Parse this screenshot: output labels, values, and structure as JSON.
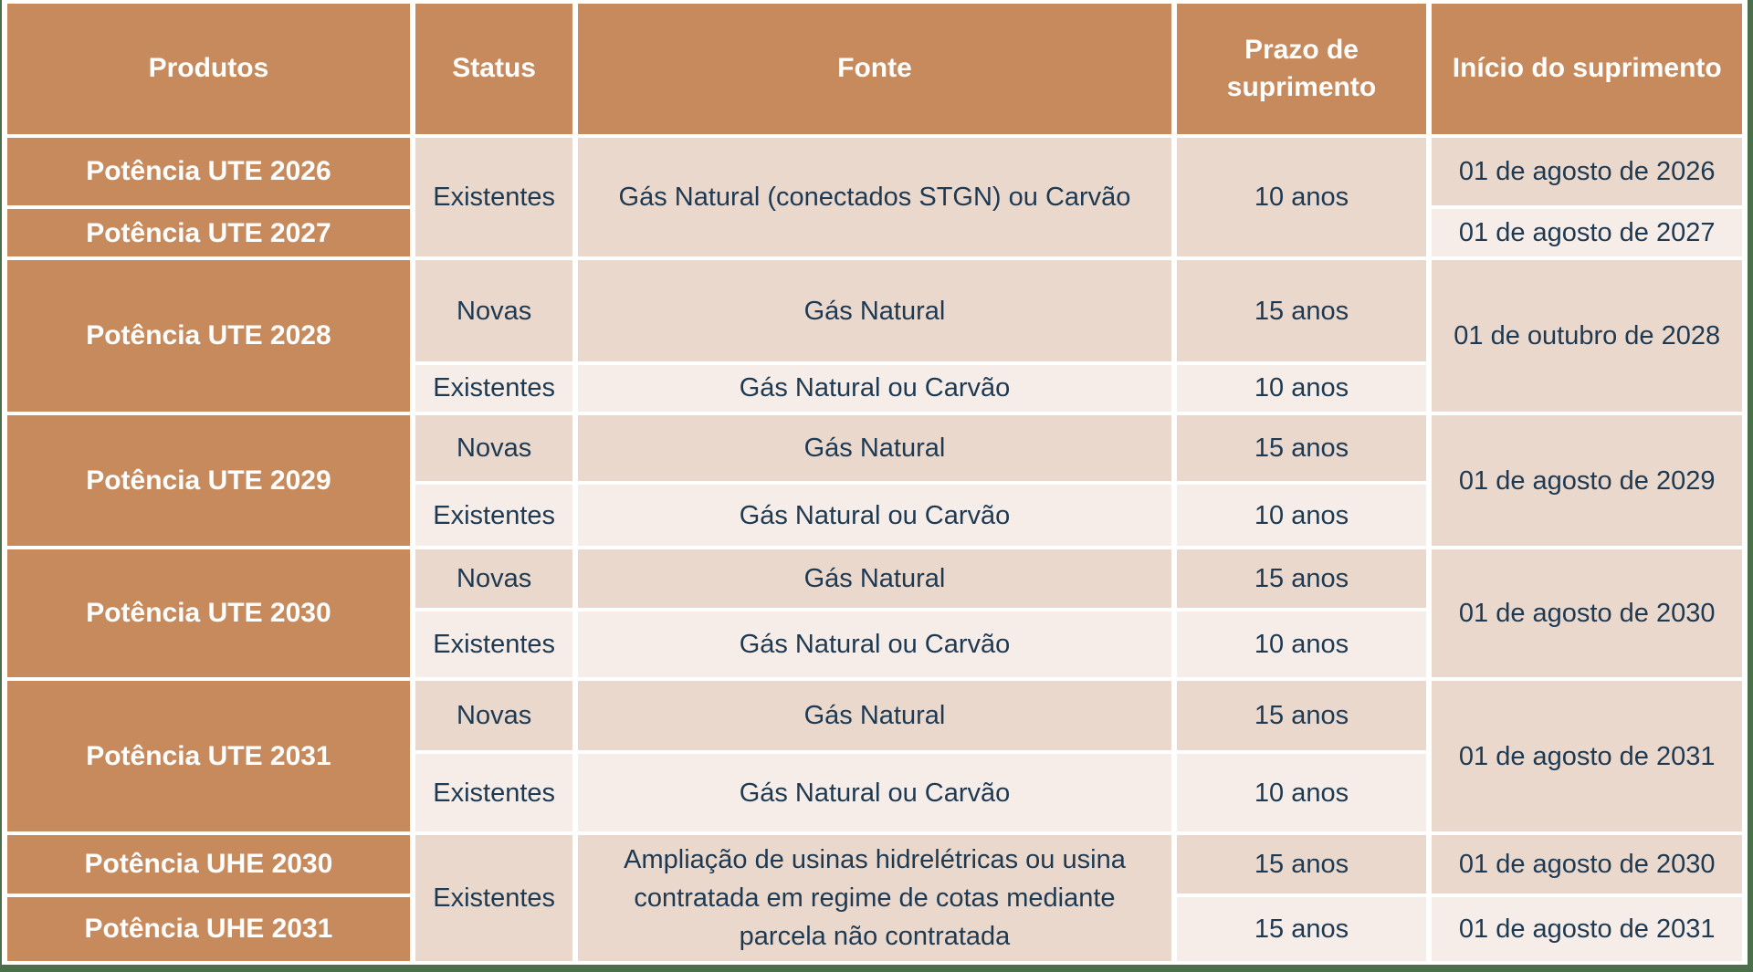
{
  "colors": {
    "header_bg": "#C68A5D",
    "product_column_bg": "#C68A5D",
    "row_shaded_bg": "#EBD8CC",
    "row_unshaded_bg": "#F6EDE8",
    "data_text": "#1E3A53",
    "header_text": "#FFFFFF",
    "gridline": "#FFFFFF",
    "frame_border": "#4A6F4A"
  },
  "table": {
    "columns": [
      "Produtos",
      "Status",
      "Fonte",
      "Prazo de suprimento",
      "Início do suprimento"
    ],
    "groups": [
      {
        "products": [
          "Potência UTE 2026",
          "Potência UTE 2027"
        ],
        "status": "Existentes",
        "fonte": "Gás Natural (conectados STGN) ou Carvão",
        "prazo": "10 anos",
        "inicios": [
          "01 de agosto de 2026",
          "01 de agosto de 2027"
        ]
      },
      {
        "product": "Potência UTE 2028",
        "rows": [
          {
            "status": "Novas",
            "fonte": "Gás Natural",
            "prazo": "15 anos"
          },
          {
            "status": "Existentes",
            "fonte": "Gás Natural ou Carvão",
            "prazo": "10 anos"
          }
        ],
        "inicio": "01 de outubro de 2028"
      },
      {
        "product": "Potência UTE 2029",
        "rows": [
          {
            "status": "Novas",
            "fonte": "Gás Natural",
            "prazo": "15 anos"
          },
          {
            "status": "Existentes",
            "fonte": "Gás Natural ou Carvão",
            "prazo": "10 anos"
          }
        ],
        "inicio": "01 de agosto de 2029"
      },
      {
        "product": "Potência UTE 2030",
        "rows": [
          {
            "status": "Novas",
            "fonte": "Gás Natural",
            "prazo": "15 anos"
          },
          {
            "status": "Existentes",
            "fonte": "Gás Natural ou Carvão",
            "prazo": "10 anos"
          }
        ],
        "inicio": "01 de agosto de 2030"
      },
      {
        "product": "Potência UTE 2031",
        "rows": [
          {
            "status": "Novas",
            "fonte": "Gás Natural",
            "prazo": "15 anos"
          },
          {
            "status": "Existentes",
            "fonte": "Gás Natural ou Carvão",
            "prazo": "10 anos"
          }
        ],
        "inicio": "01 de agosto de 2031"
      },
      {
        "products": [
          "Potência UHE 2030",
          "Potência UHE 2031"
        ],
        "status": "Existentes",
        "fonte": "Ampliação de usinas hidrelétricas ou usina contratada em regime de cotas mediante parcela não contratada",
        "prazos": [
          "15 anos",
          "15 anos"
        ],
        "inicios": [
          "01 de agosto de 2030",
          "01 de agosto de 2031"
        ]
      }
    ]
  }
}
